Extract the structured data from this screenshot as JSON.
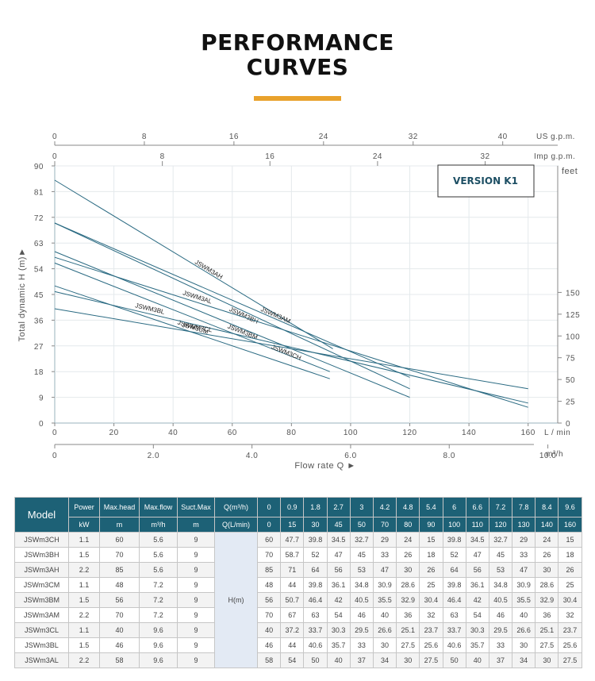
{
  "title": "PERFORMANCE\nCURVES",
  "colors": {
    "accent": "#e9a22c",
    "curve": "#2a6a82",
    "header_bg": "#1d6176"
  },
  "chart_data": {
    "type": "line",
    "version_label": "VERSION K1",
    "ylabel": "Total dynamic H (m)►",
    "xlabel": "Flow rate Q ►",
    "y_ticks": [
      0,
      9,
      18,
      27,
      36,
      45,
      54,
      63,
      72,
      81,
      90
    ],
    "ylim": [
      0,
      90
    ],
    "x_unit_lmin": "L / min",
    "x_ticks_lmin": [
      0,
      20,
      40,
      60,
      80,
      100,
      120,
      140,
      160
    ],
    "xlim_lmin": [
      0,
      170
    ],
    "x_unit_m3h": "m³/h",
    "x_ticks_m3h": [
      "0",
      "2.0",
      "4.0",
      "6.0",
      "8.0",
      "10.0"
    ],
    "x_unit_usgpm": "US g.p.m.",
    "x_ticks_usgpm": [
      0,
      8,
      16,
      24,
      32,
      40
    ],
    "x_unit_impgpm": "Imp g.p.m.",
    "x_ticks_impgpm": [
      0,
      8,
      16,
      24,
      32
    ],
    "y2_unit": "feet",
    "y2_ticks": [
      0,
      25,
      50,
      75,
      100,
      125,
      150
    ],
    "series": [
      {
        "name": "JSWM3AH",
        "x": [
          0,
          94
        ],
        "y": [
          85,
          26
        ]
      },
      {
        "name": "JSWM3AM",
        "x": [
          0,
          120
        ],
        "y": [
          70,
          16
        ]
      },
      {
        "name": "JSWM3BH",
        "x": [
          0,
          120
        ],
        "y": [
          70,
          12
        ]
      },
      {
        "name": "JSWM3BM",
        "x": [
          0,
          93
        ],
        "y": [
          56,
          18
        ]
      },
      {
        "name": "JSWM3AL",
        "x": [
          0,
          160
        ],
        "y": [
          58,
          5.5
        ]
      },
      {
        "name": "JSWM3CH",
        "x": [
          0,
          120
        ],
        "y": [
          60,
          9
        ]
      },
      {
        "name": "JSWM3CM",
        "x": [
          0,
          93
        ],
        "y": [
          48,
          15.5
        ]
      },
      {
        "name": "JSWM3BL",
        "x": [
          0,
          160
        ],
        "y": [
          46,
          7
        ]
      },
      {
        "name": "JSWM3CL",
        "x": [
          0,
          160
        ],
        "y": [
          40,
          12
        ]
      }
    ]
  },
  "table": {
    "model_header": "Model",
    "h1": [
      "Power",
      "Max.head",
      "Max.flow",
      "Suct.Max"
    ],
    "h2": [
      "kW",
      "m",
      "m³/h",
      "m"
    ],
    "q_label_m3h": "Q(m³/h)",
    "q_label_lmin": "Q(L/min)",
    "q_m3h": [
      "0",
      "0.9",
      "1.8",
      "2.7",
      "3",
      "4.2",
      "4.8",
      "5.4",
      "6",
      "6.6",
      "7.2",
      "7.8",
      "8.4",
      "9.6"
    ],
    "q_lmin": [
      "0",
      "15",
      "30",
      "45",
      "50",
      "70",
      "80",
      "90",
      "100",
      "110",
      "120",
      "130",
      "140",
      "160"
    ],
    "h_label": "H(m)",
    "rows": [
      {
        "model": "JSWm3CH",
        "power": "1.1",
        "maxhead": "60",
        "maxflow": "5.6",
        "suct": "9",
        "h": [
          "60",
          "47.7",
          "39.8",
          "34.5",
          "32.7",
          "29",
          "24",
          "15",
          "39.8",
          "34.5",
          "32.7",
          "29",
          "24",
          "15"
        ]
      },
      {
        "model": "JSWm3BH",
        "power": "1.5",
        "maxhead": "70",
        "maxflow": "5.6",
        "suct": "9",
        "h": [
          "70",
          "58.7",
          "52",
          "47",
          "45",
          "33",
          "26",
          "18",
          "52",
          "47",
          "45",
          "33",
          "26",
          "18"
        ]
      },
      {
        "model": "JSWm3AH",
        "power": "2.2",
        "maxhead": "85",
        "maxflow": "5.6",
        "suct": "9",
        "h": [
          "85",
          "71",
          "64",
          "56",
          "53",
          "47",
          "30",
          "26",
          "64",
          "56",
          "53",
          "47",
          "30",
          "26"
        ]
      },
      {
        "model": "JSWm3CM",
        "power": "1.1",
        "maxhead": "48",
        "maxflow": "7.2",
        "suct": "9",
        "h": [
          "48",
          "44",
          "39.8",
          "36.1",
          "34.8",
          "30.9",
          "28.6",
          "25",
          "39.8",
          "36.1",
          "34.8",
          "30.9",
          "28.6",
          "25"
        ]
      },
      {
        "model": "JSWm3BM",
        "power": "1.5",
        "maxhead": "56",
        "maxflow": "7.2",
        "suct": "9",
        "h": [
          "56",
          "50.7",
          "46.4",
          "42",
          "40.5",
          "35.5",
          "32.9",
          "30.4",
          "46.4",
          "42",
          "40.5",
          "35.5",
          "32.9",
          "30.4"
        ]
      },
      {
        "model": "JSWm3AM",
        "power": "2.2",
        "maxhead": "70",
        "maxflow": "7.2",
        "suct": "9",
        "h": [
          "70",
          "67",
          "63",
          "54",
          "46",
          "40",
          "36",
          "32",
          "63",
          "54",
          "46",
          "40",
          "36",
          "32"
        ]
      },
      {
        "model": "JSWm3CL",
        "power": "1.1",
        "maxhead": "40",
        "maxflow": "9.6",
        "suct": "9",
        "h": [
          "40",
          "37.2",
          "33.7",
          "30.3",
          "29.5",
          "26.6",
          "25.1",
          "23.7",
          "33.7",
          "30.3",
          "29.5",
          "26.6",
          "25.1",
          "23.7"
        ]
      },
      {
        "model": "JSWm3BL",
        "power": "1.5",
        "maxhead": "46",
        "maxflow": "9.6",
        "suct": "9",
        "h": [
          "46",
          "44",
          "40.6",
          "35.7",
          "33",
          "30",
          "27.5",
          "25.6",
          "40.6",
          "35.7",
          "33",
          "30",
          "27.5",
          "25.6"
        ]
      },
      {
        "model": "JSWm3AL",
        "power": "2.2",
        "maxhead": "58",
        "maxflow": "9.6",
        "suct": "9",
        "h": [
          "58",
          "54",
          "50",
          "40",
          "37",
          "34",
          "30",
          "27.5",
          "50",
          "40",
          "37",
          "34",
          "30",
          "27.5"
        ]
      }
    ]
  }
}
